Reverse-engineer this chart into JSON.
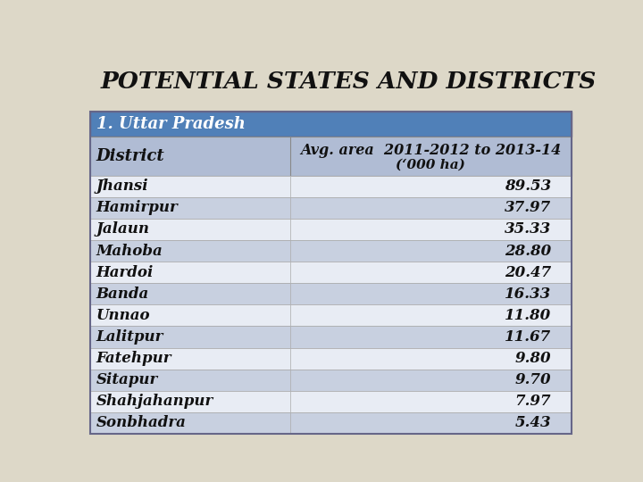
{
  "title": "POTENTIAL STATES AND DISTRICTS",
  "section_header": "1. Uttar Pradesh",
  "col1_header": "District",
  "col2_header_line1": "Avg. area  2011-2012 to 2013-14",
  "col2_header_line2": "(‘000 ha)",
  "districts": [
    "Jhansi",
    "Hamirpur",
    "Jalaun",
    "Mahoba",
    "Hardoi",
    "Banda",
    "Unnao",
    "Lalitpur",
    "Fatehpur",
    "Sitapur",
    "Shahjahanpur",
    "Sonbhadra"
  ],
  "values": [
    89.53,
    37.97,
    35.33,
    28.8,
    20.47,
    16.33,
    11.8,
    11.67,
    9.8,
    9.7,
    7.97,
    5.43
  ],
  "bg_color": "#ddd8c8",
  "title_color": "#111111",
  "section_bg": "#5080b8",
  "section_text_color": "#ffffff",
  "header_row_bg": "#b0bcd4",
  "row_bg": "#c8d0e0",
  "row_bg_white": "#e8ecf4",
  "border_color": "#888888",
  "col_split": 0.415
}
